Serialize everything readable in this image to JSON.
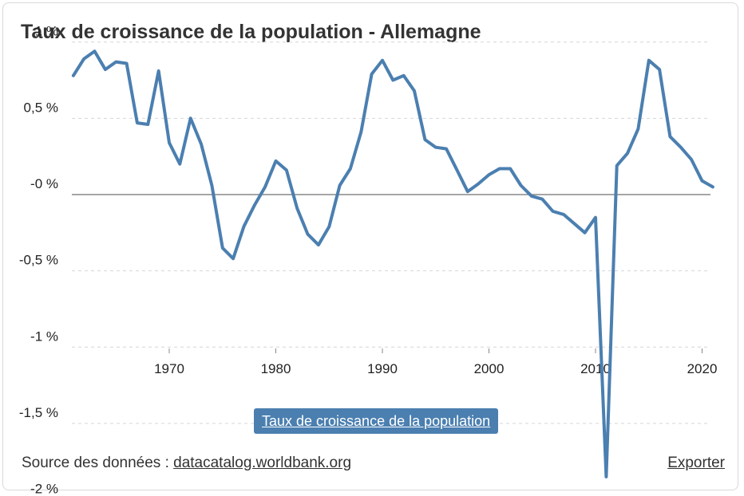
{
  "title": "Taux de croissance de la population - Allemagne",
  "chart_data": {
    "type": "line",
    "title": "Taux de croissance de la population - Allemagne",
    "xlabel": "",
    "ylabel": "",
    "xlim": [
      1961,
      2021
    ],
    "ylim": [
      -2,
      1
    ],
    "grid": true,
    "yticks": [
      1,
      0.5,
      0,
      -0.5,
      -1,
      -1.5,
      -2
    ],
    "ytick_labels": [
      "1 %",
      "0,5 %",
      "-0 %",
      "-0,5 %",
      "-1 %",
      "-1,5 %",
      "-2 %"
    ],
    "xticks": [
      1970,
      1980,
      1990,
      2000,
      2010,
      2020
    ],
    "xtick_labels": [
      "1970",
      "1980",
      "1990",
      "2000",
      "2010",
      "2020"
    ],
    "series": [
      {
        "name": "Taux de croissance de la population",
        "color": "#4b7fb0",
        "x": [
          1961,
          1962,
          1963,
          1964,
          1965,
          1966,
          1967,
          1968,
          1969,
          1970,
          1971,
          1972,
          1973,
          1974,
          1975,
          1976,
          1977,
          1978,
          1979,
          1980,
          1981,
          1982,
          1983,
          1984,
          1985,
          1986,
          1987,
          1988,
          1989,
          1990,
          1991,
          1992,
          1993,
          1994,
          1995,
          1996,
          1997,
          1998,
          1999,
          2000,
          2001,
          2002,
          2003,
          2004,
          2005,
          2006,
          2007,
          2008,
          2009,
          2010,
          2011,
          2012,
          2013,
          2014,
          2015,
          2016,
          2017,
          2018,
          2019,
          2020,
          2021
        ],
        "values": [
          0.78,
          0.89,
          0.94,
          0.82,
          0.87,
          0.86,
          0.47,
          0.46,
          0.81,
          0.34,
          0.2,
          0.5,
          0.33,
          0.06,
          -0.35,
          -0.42,
          -0.21,
          -0.07,
          0.05,
          0.22,
          0.16,
          -0.09,
          -0.26,
          -0.33,
          -0.21,
          0.06,
          0.17,
          0.41,
          0.79,
          0.88,
          0.75,
          0.78,
          0.68,
          0.36,
          0.31,
          0.3,
          0.16,
          0.02,
          0.07,
          0.13,
          0.17,
          0.17,
          0.06,
          -0.01,
          -0.03,
          -0.11,
          -0.13,
          -0.19,
          -0.25,
          -0.15,
          -1.85,
          0.19,
          0.27,
          0.43,
          0.88,
          0.82,
          0.38,
          0.31,
          0.23,
          0.09,
          0.05
        ]
      }
    ]
  },
  "legend_label": "Taux de croissance de la population",
  "footer": {
    "source_prefix": "Source des données : ",
    "source_link": "datacatalog.worldbank.org",
    "export_label": "Exporter"
  }
}
